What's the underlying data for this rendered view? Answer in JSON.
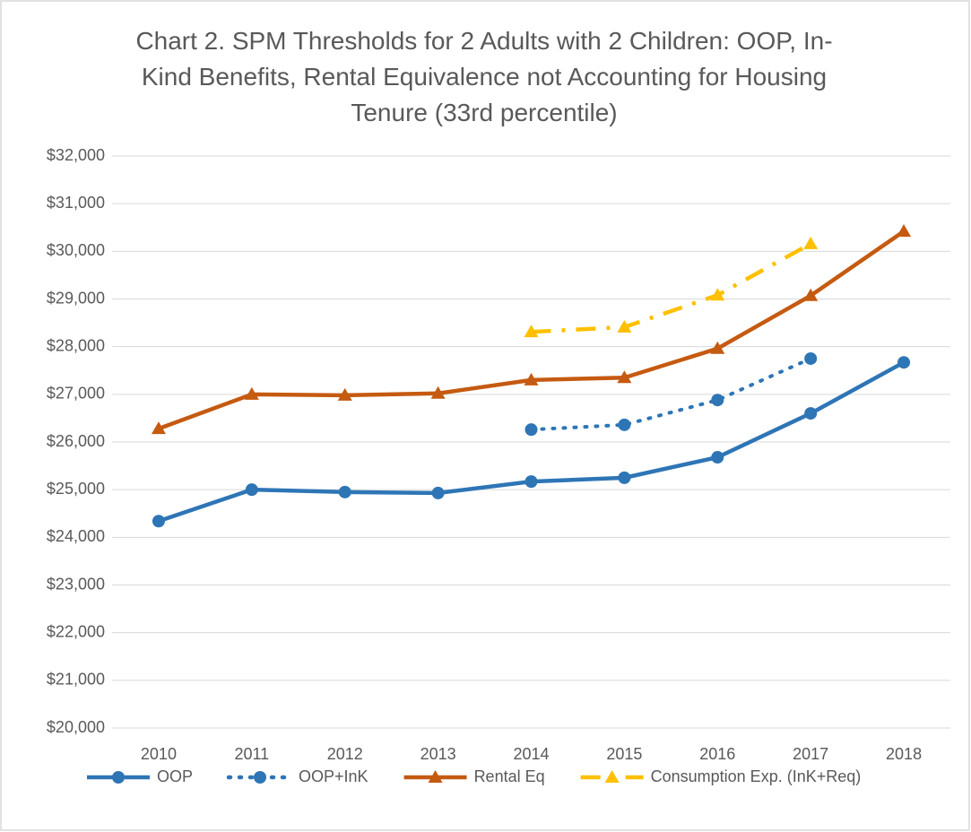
{
  "chart_data": {
    "type": "line",
    "title": "Chart 2. SPM Thresholds for 2 Adults with 2 Children: OOP, In-Kind Benefits, Rental Equivalence not Accounting for Housing Tenure (33rd percentile)",
    "categories": [
      "2010",
      "2011",
      "2012",
      "2013",
      "2014",
      "2015",
      "2016",
      "2017",
      "2018"
    ],
    "series": [
      {
        "name": "OOP",
        "color": "#2e75b6",
        "dash": "solid",
        "marker": "circle",
        "values": [
          24340,
          25000,
          24950,
          24930,
          25170,
          25250,
          25680,
          26600,
          27670
        ]
      },
      {
        "name": "OOP+InK",
        "color": "#2e75b6",
        "dash": "dotted",
        "marker": "circle",
        "values": [
          null,
          null,
          null,
          null,
          26260,
          26360,
          26880,
          27750,
          null
        ]
      },
      {
        "name": "Rental Eq",
        "color": "#c55a11",
        "dash": "solid",
        "marker": "triangle",
        "values": [
          26280,
          27000,
          26980,
          27020,
          27300,
          27350,
          27960,
          29070,
          30420
        ]
      },
      {
        "name": "Consumption Exp. (InK+Req)",
        "color": "#ffc000",
        "dash": "dashdot",
        "marker": "triangle",
        "values": [
          null,
          null,
          null,
          null,
          28310,
          28410,
          29080,
          30160,
          null
        ]
      }
    ],
    "ylim": [
      20000,
      32000
    ],
    "yticks": [
      {
        "value": 20000,
        "label": "$20,000"
      },
      {
        "value": 21000,
        "label": "$21,000"
      },
      {
        "value": 22000,
        "label": "$22,000"
      },
      {
        "value": 23000,
        "label": "$23,000"
      },
      {
        "value": 24000,
        "label": "$24,000"
      },
      {
        "value": 25000,
        "label": "$25,000"
      },
      {
        "value": 26000,
        "label": "$26,000"
      },
      {
        "value": 27000,
        "label": "$27,000"
      },
      {
        "value": 28000,
        "label": "$28,000"
      },
      {
        "value": 29000,
        "label": "$29,000"
      },
      {
        "value": 30000,
        "label": "$30,000"
      },
      {
        "value": 31000,
        "label": "$31,000"
      },
      {
        "value": 32000,
        "label": "$32,000"
      }
    ],
    "grid": true,
    "legend": "bottom"
  }
}
